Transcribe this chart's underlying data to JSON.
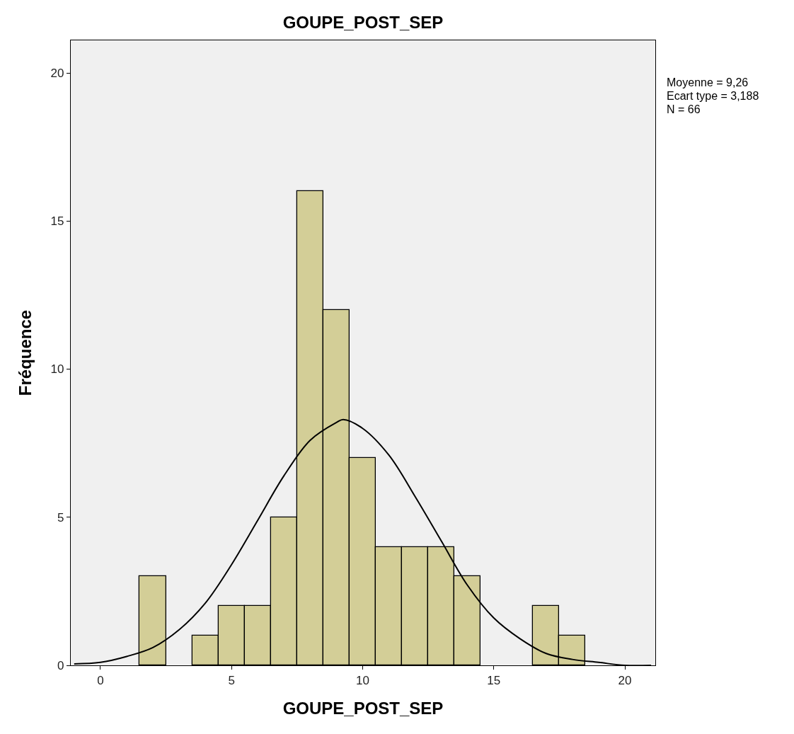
{
  "chart_data": {
    "type": "histogram",
    "title": "GOUPE_POST_SEP",
    "xlabel": "GOUPE_POST_SEP",
    "ylabel": "Fréquence",
    "bins": [
      1.5,
      2.5,
      3.5,
      4.5,
      5.5,
      6.5,
      7.5,
      8.5,
      9.5,
      10.5,
      11.5,
      12.5,
      13.5,
      14.5,
      15.5,
      16.5,
      17.5,
      18.5
    ],
    "series": [
      {
        "color": "#d3ce97",
        "values": [
          3,
          0,
          1,
          2,
          2,
          5,
          16,
          12,
          7,
          4,
          4,
          4,
          3,
          0,
          0,
          2,
          1
        ]
      },
      {
        "type": "line",
        "color": "#000000",
        "x": [
          -1,
          0,
          1,
          2,
          3,
          4,
          5,
          6,
          7,
          8,
          9,
          9.26,
          10,
          11,
          12,
          13,
          14,
          15,
          16,
          17,
          18,
          19,
          20,
          21
        ],
        "values": [
          0.05,
          0.1,
          0.3,
          0.6,
          1.2,
          2.1,
          3.4,
          4.9,
          6.4,
          7.6,
          8.2,
          8.3,
          8.0,
          7.1,
          5.7,
          4.2,
          2.7,
          1.6,
          0.9,
          0.4,
          0.2,
          0.1,
          0.0,
          0.0
        ]
      }
    ],
    "xlim": [
      -1.13,
      21.16
    ],
    "xticks": [
      0,
      5,
      10,
      15,
      20
    ],
    "ylim": [
      0,
      21.1
    ],
    "yticks": [
      0,
      5,
      10,
      15,
      20
    ],
    "grid": false,
    "legend": false,
    "marker": "none",
    "line_style": "solid",
    "annotations": [
      "Moyenne = 9,26",
      "Ecart type = 3,188",
      "N = 66"
    ]
  }
}
